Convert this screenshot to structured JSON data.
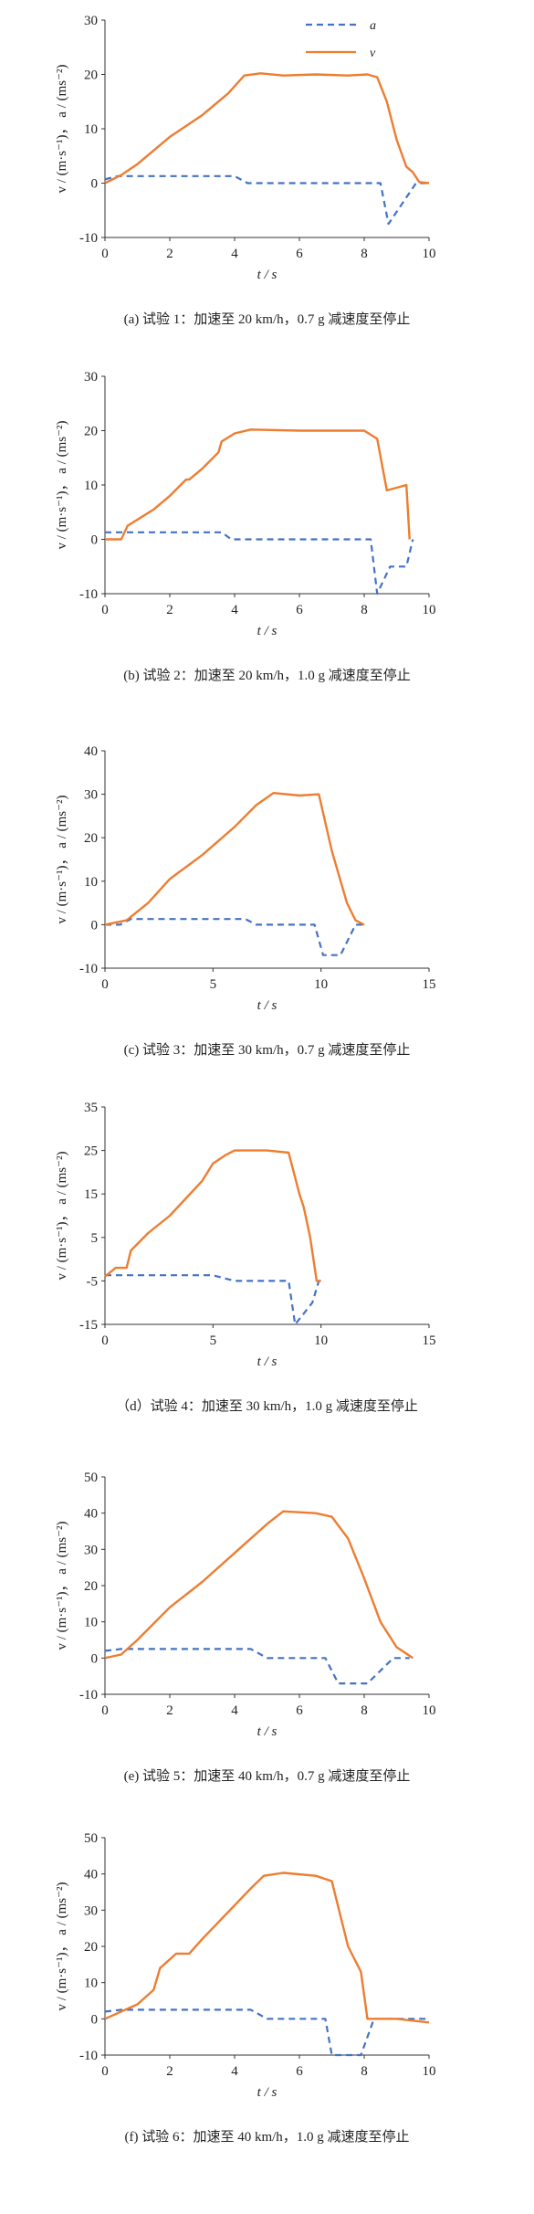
{
  "chart_data": [
    {
      "type": "line",
      "caption": "(a)  试验 1：加速至 20 km/h，0.7 g 减速度至停止",
      "xlabel": "t / s",
      "ylabel": "v / (m·s⁻¹)，  a / (ms⁻²)",
      "xlim": [
        0,
        10
      ],
      "ylim": [
        -10,
        30
      ],
      "xticks": [
        0,
        2,
        4,
        6,
        8,
        10
      ],
      "yticks": [
        -10,
        0,
        10,
        20,
        30
      ],
      "legend": {
        "position": "top-right",
        "entries": [
          "a",
          "v"
        ]
      },
      "series": [
        {
          "name": "a",
          "style": "dashed",
          "color": "#4472C4",
          "x": [
            0,
            0.4,
            1.0,
            4.0,
            4.4,
            8.5,
            8.75,
            9.6,
            10
          ],
          "y": [
            0.7,
            1.3,
            1.3,
            1.3,
            0,
            0,
            -7.5,
            0,
            0
          ]
        },
        {
          "name": "v",
          "style": "solid",
          "color": "#ED7D31",
          "x": [
            0,
            0.5,
            1.0,
            2.0,
            3.0,
            3.8,
            4.3,
            4.8,
            5.5,
            6.5,
            7.5,
            8.1,
            8.4,
            8.7,
            9.0,
            9.3,
            9.5,
            9.7,
            10
          ],
          "y": [
            0,
            1.5,
            3.5,
            8.5,
            12.5,
            16.5,
            19.8,
            20.2,
            19.8,
            20.0,
            19.8,
            20.0,
            19.5,
            15,
            8,
            3,
            2,
            0.2,
            0
          ]
        }
      ]
    },
    {
      "type": "line",
      "caption": "(b)  试验 2：加速至 20 km/h，1.0 g 减速度至停止",
      "xlabel": "t / s",
      "ylabel": "v / (m·s⁻¹)，  a / (ms⁻²)",
      "xlim": [
        0,
        10
      ],
      "ylim": [
        -10,
        30
      ],
      "xticks": [
        0,
        2,
        4,
        6,
        8,
        10
      ],
      "yticks": [
        -10,
        0,
        10,
        20,
        30
      ],
      "series": [
        {
          "name": "a",
          "style": "dashed",
          "color": "#4472C4",
          "x": [
            0,
            0.5,
            3.6,
            3.9,
            8.0,
            8.2,
            8.4,
            8.8,
            9.3,
            9.5
          ],
          "y": [
            1.3,
            1.3,
            1.3,
            0,
            0,
            0,
            -10,
            -5,
            -5,
            0
          ]
        },
        {
          "name": "v",
          "style": "solid",
          "color": "#ED7D31",
          "x": [
            0,
            0.5,
            0.7,
            1.5,
            2.0,
            2.5,
            2.6,
            3.0,
            3.5,
            3.6,
            4.0,
            4.5,
            6.0,
            7.0,
            8.0,
            8.4,
            8.7,
            9.0,
            9.3,
            9.4
          ],
          "y": [
            0,
            0,
            2.5,
            5.5,
            8.0,
            11,
            11,
            13,
            16,
            18,
            19.5,
            20.2,
            20.0,
            20.0,
            20.0,
            18.5,
            9,
            9.5,
            10,
            0
          ]
        }
      ]
    },
    {
      "type": "line",
      "caption": "(c)  试验 3：加速至 30 km/h，0.7 g 减速度至停止",
      "xlabel": "t / s",
      "ylabel": "v / (m·s⁻¹)，  a / (ms⁻²)",
      "xlim": [
        0,
        15
      ],
      "ylim": [
        -10,
        40
      ],
      "xticks": [
        0,
        5,
        10,
        15
      ],
      "yticks": [
        -10,
        0,
        10,
        20,
        30,
        40
      ],
      "series": [
        {
          "name": "a",
          "style": "dashed",
          "color": "#4472C4",
          "x": [
            0,
            0.7,
            1.2,
            6.5,
            7.0,
            9.7,
            10.1,
            10.9,
            11.6,
            12
          ],
          "y": [
            0,
            0,
            1.3,
            1.3,
            0,
            0,
            -7,
            -7,
            0,
            0
          ]
        },
        {
          "name": "v",
          "style": "solid",
          "color": "#ED7D31",
          "x": [
            0,
            1.0,
            2.0,
            3.0,
            4.5,
            6.0,
            7.0,
            7.8,
            9.0,
            9.9,
            10.5,
            11.2,
            11.6,
            12.0
          ],
          "y": [
            0,
            1,
            5,
            10.5,
            16,
            22.5,
            27.5,
            30.3,
            29.7,
            30,
            17,
            5,
            1,
            0
          ]
        }
      ]
    },
    {
      "type": "line",
      "caption": "（d）试验 4：加速至 30 km/h，1.0 g 减速度至停止",
      "xlabel": "t / s",
      "ylabel": "v / (m·s⁻¹)，  a / (ms⁻²)",
      "xlim": [
        0,
        15
      ],
      "ylim": [
        -15,
        35
      ],
      "xticks": [
        0,
        5,
        10,
        15
      ],
      "yticks": [
        -15,
        -5,
        5,
        15,
        25,
        35
      ],
      "series": [
        {
          "name": "a",
          "style": "dashed",
          "color": "#4472C4",
          "x": [
            0,
            5.0,
            6.0,
            8.5,
            8.8,
            9.6,
            9.9,
            10.0
          ],
          "y": [
            -3.7,
            -3.7,
            -5,
            -5,
            -15,
            -10,
            -5,
            -5
          ]
        },
        {
          "name": "v",
          "style": "solid",
          "color": "#ED7D31",
          "x": [
            0,
            0.5,
            1.0,
            1.2,
            2.0,
            3.0,
            4.5,
            5.0,
            5.6,
            6.0,
            7.5,
            8.5,
            9.0,
            9.2,
            9.5,
            9.8,
            10.0
          ],
          "y": [
            -4,
            -2,
            -2,
            2,
            6,
            10,
            18,
            22,
            24,
            25,
            25,
            24.5,
            15,
            12,
            5,
            -5,
            -5
          ]
        }
      ]
    },
    {
      "type": "line",
      "caption": "(e)  试验 5：加速至 40 km/h，0.7 g 减速度至停止",
      "xlabel": "t / s",
      "ylabel": "v / (m·s⁻¹)，  a / (ms⁻²)",
      "xlim": [
        0,
        10
      ],
      "ylim": [
        -10,
        50
      ],
      "xticks": [
        0,
        2,
        4,
        6,
        8,
        10
      ],
      "yticks": [
        -10,
        0,
        10,
        20,
        30,
        40,
        50
      ],
      "series": [
        {
          "name": "a",
          "style": "dashed",
          "color": "#4472C4",
          "x": [
            0,
            0.5,
            4.5,
            5.0,
            6.8,
            7.2,
            8.1,
            8.9,
            9.4
          ],
          "y": [
            2,
            2.5,
            2.5,
            0,
            0,
            -7,
            -7,
            0,
            0
          ]
        },
        {
          "name": "v",
          "style": "solid",
          "color": "#ED7D31",
          "x": [
            0,
            0.5,
            1.0,
            2.0,
            3.0,
            4.0,
            5.0,
            5.5,
            6.5,
            7.0,
            7.5,
            8.0,
            8.5,
            9.0,
            9.5
          ],
          "y": [
            0,
            1,
            5,
            14,
            21,
            29,
            37,
            40.5,
            40,
            39,
            33,
            22,
            10,
            3,
            0
          ]
        }
      ]
    },
    {
      "type": "line",
      "caption": "(f)  试验 6：加速至 40 km/h，1.0 g 减速度至停止",
      "xlabel": "t / s",
      "ylabel": "v / (m·s⁻¹)，  a / (ms⁻²)",
      "xlim": [
        0,
        10
      ],
      "ylim": [
        -10,
        50
      ],
      "xticks": [
        0,
        2,
        4,
        6,
        8,
        10
      ],
      "yticks": [
        -10,
        0,
        10,
        20,
        30,
        40,
        50
      ],
      "series": [
        {
          "name": "a",
          "style": "dashed",
          "color": "#4472C4",
          "x": [
            0,
            0.5,
            4.5,
            5.0,
            6.8,
            7.0,
            7.5,
            7.9,
            8.3,
            10
          ],
          "y": [
            2,
            2.5,
            2.5,
            0,
            0,
            -10,
            -10,
            -10,
            0,
            0
          ]
        },
        {
          "name": "v",
          "style": "solid",
          "color": "#ED7D31",
          "x": [
            0,
            1.0,
            1.5,
            1.7,
            2.2,
            2.6,
            3.0,
            4.5,
            4.9,
            5.5,
            6.5,
            7.0,
            7.5,
            7.9,
            8.1,
            9.0,
            10
          ],
          "y": [
            0,
            4,
            8,
            14,
            18,
            18,
            22,
            36,
            39.5,
            40.3,
            39.5,
            38,
            20,
            13,
            0,
            0,
            -1
          ]
        }
      ]
    }
  ]
}
